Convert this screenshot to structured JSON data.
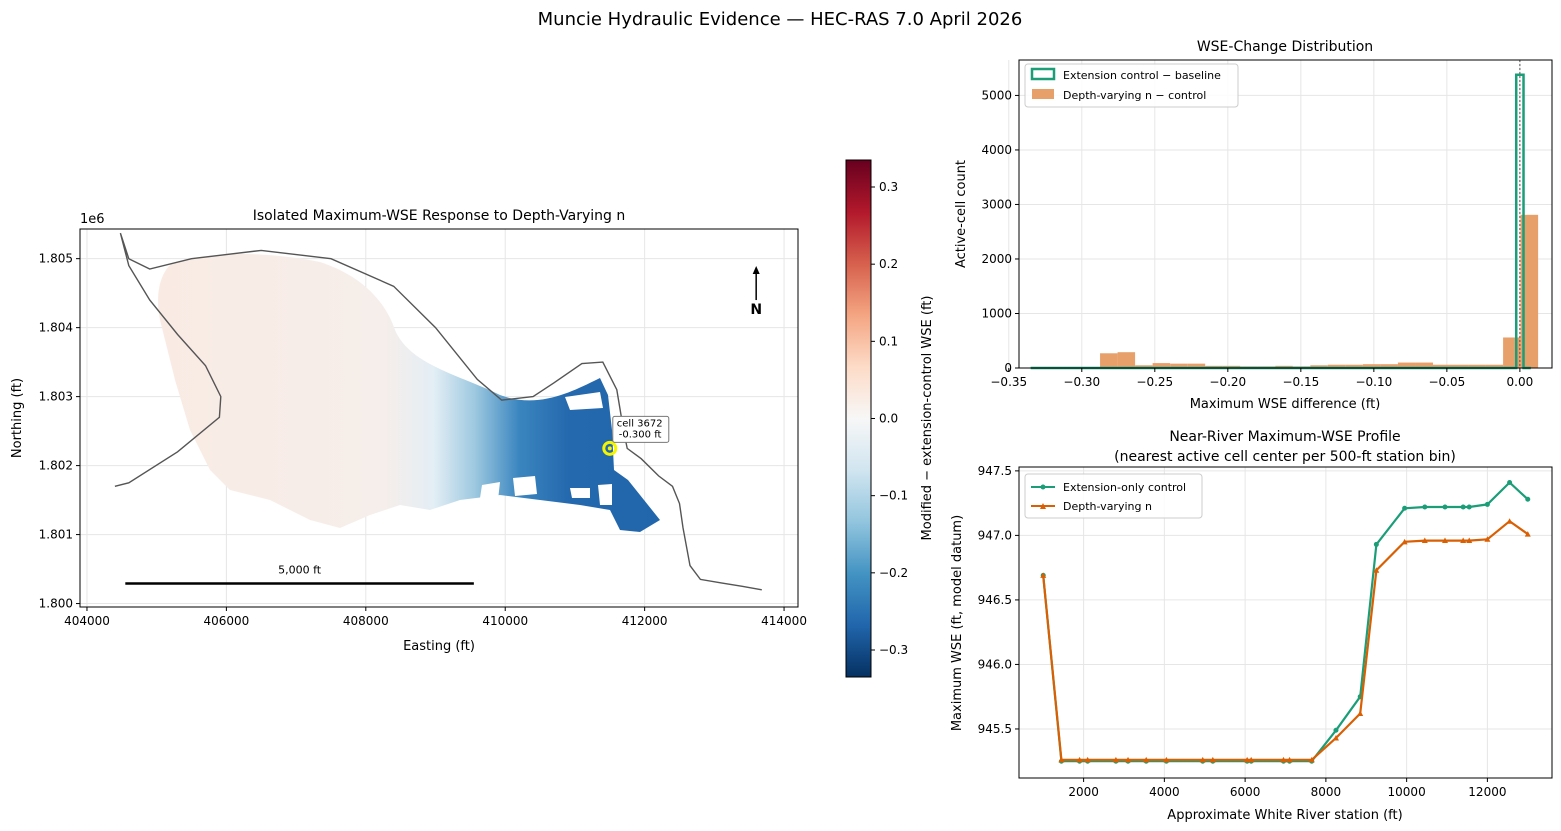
{
  "figure": {
    "suptitle": "Muncie Hydraulic Evidence — HEC-RAS 7.0 April 2026"
  },
  "colors": {
    "green": "#1b9e77",
    "orange": "#d95f02",
    "orange_fill": "#e8a06b",
    "highlight": "#f5f500",
    "neg_strong": "#2166ac",
    "pos_light": "#f9ebe4",
    "neutral": "#f2f2f2"
  },
  "chart_data": [
    {
      "id": "map",
      "type": "heatmap",
      "title": "Isolated Maximum-WSE Response to Depth-Varying n",
      "xlabel": "Easting (ft)",
      "ylabel": "Northing (ft)",
      "y_offset_label": "1e6",
      "xlim": [
        403900,
        414200
      ],
      "ylim": [
        1.79995,
        1.80543
      ],
      "xticks": [
        404000,
        406000,
        408000,
        410000,
        412000,
        414000
      ],
      "yticks": [
        1.8,
        1.801,
        1.802,
        1.803,
        1.804,
        1.805
      ],
      "grid": true,
      "colorbar": {
        "label": "Modified − extension-control WSE (ft)",
        "vmin": -0.335,
        "vmax": 0.335,
        "ticks": [
          -0.3,
          -0.2,
          -0.1,
          0.0,
          0.1,
          0.2,
          0.3
        ],
        "colormap": "RdBu_r"
      },
      "annotation": {
        "line1": "cell 3672",
        "line2": "-0.300 ft",
        "x": 411500,
        "y": 1.80225
      },
      "scale_bar": {
        "label": "5,000 ft",
        "x_start": 404550,
        "x_end": 409550,
        "y": 1.80029
      },
      "north_arrow": {
        "label": "N",
        "x": 413600,
        "y": 1.8044
      },
      "river_centerline": [
        [
          404400,
          1.8017
        ],
        [
          404600,
          1.80175
        ],
        [
          405300,
          1.8022
        ],
        [
          405900,
          1.8027
        ],
        [
          405920,
          1.803
        ],
        [
          405700,
          1.80345
        ],
        [
          405300,
          1.8039
        ],
        [
          404900,
          1.8044
        ],
        [
          404600,
          1.8049
        ],
        [
          404480,
          1.80537
        ],
        [
          404600,
          1.805
        ],
        [
          404900,
          1.80485
        ],
        [
          405500,
          1.805
        ],
        [
          406500,
          1.80512
        ],
        [
          407500,
          1.805
        ],
        [
          408400,
          1.8046
        ],
        [
          409000,
          1.804
        ],
        [
          409600,
          1.80325
        ],
        [
          409950,
          1.80295
        ],
        [
          410400,
          1.803
        ],
        [
          410700,
          1.8032
        ],
        [
          411100,
          1.80348
        ],
        [
          411400,
          1.8035
        ],
        [
          411600,
          1.8031
        ],
        [
          411700,
          1.8025
        ],
        [
          411750,
          1.80225
        ],
        [
          411950,
          1.8021
        ],
        [
          412200,
          1.80185
        ],
        [
          412400,
          1.8017
        ],
        [
          412500,
          1.80145
        ],
        [
          412550,
          1.8011
        ],
        [
          412650,
          1.80055
        ],
        [
          412800,
          1.80035
        ],
        [
          413100,
          1.8003
        ],
        [
          413400,
          1.80025
        ],
        [
          413680,
          1.8002
        ]
      ]
    },
    {
      "id": "hist",
      "type": "bar",
      "title": "WSE-Change Distribution",
      "xlabel": "Maximum WSE difference (ft)",
      "ylabel": "Active-cell count",
      "xlim": [
        -0.343,
        0.022
      ],
      "ylim": [
        0,
        5650
      ],
      "xticks": [
        -0.35,
        -0.3,
        -0.25,
        -0.2,
        -0.15,
        -0.1,
        -0.05,
        0.0
      ],
      "yticks": [
        0,
        1000,
        2000,
        3000,
        4000,
        5000
      ],
      "grid": true,
      "legend_position": "upper left",
      "vline": 0,
      "series": [
        {
          "name": "Extension control − baseline",
          "style": "step",
          "bin_edges": [
            -0.335,
            -0.3,
            -0.25,
            -0.2,
            -0.15,
            -0.1,
            -0.05,
            -0.0025,
            0.0025,
            0.0075
          ],
          "counts": [
            0,
            0,
            0,
            0,
            0,
            0,
            0,
            5380,
            0
          ]
        },
        {
          "name": "Depth-varying n − control",
          "style": "filled",
          "bin_edges": [
            -0.3355,
            -0.3235,
            -0.3115,
            -0.2995,
            -0.2875,
            -0.2755,
            -0.2635,
            -0.2515,
            -0.2395,
            -0.2275,
            -0.2155,
            -0.2035,
            -0.1915,
            -0.1795,
            -0.1675,
            -0.1555,
            -0.1435,
            -0.1315,
            -0.1195,
            -0.1075,
            -0.0955,
            -0.0835,
            -0.0715,
            -0.0595,
            -0.0475,
            -0.0355,
            -0.0235,
            -0.0115,
            0.0005,
            0.0125
          ],
          "counts": [
            10,
            10,
            10,
            10,
            270,
            290,
            50,
            90,
            80,
            80,
            40,
            40,
            30,
            30,
            40,
            30,
            50,
            60,
            60,
            70,
            70,
            100,
            100,
            60,
            60,
            60,
            60,
            560,
            2810
          ]
        }
      ]
    },
    {
      "id": "profile",
      "type": "line",
      "title": "Near-River Maximum-WSE Profile",
      "subtitle": "(nearest active cell center per 500-ft station bin)",
      "xlabel": "Approximate White River station (ft)",
      "ylabel": "Maximum WSE (ft, model datum)",
      "xlim": [
        400,
        13600
      ],
      "ylim": [
        945.12,
        947.53
      ],
      "xticks": [
        2000,
        4000,
        6000,
        8000,
        10000,
        12000
      ],
      "yticks": [
        945.5,
        946.0,
        946.5,
        947.0,
        947.5
      ],
      "grid": true,
      "legend_position": "upper left",
      "x": [
        1000,
        1450,
        1900,
        2100,
        2800,
        3100,
        3550,
        4050,
        4950,
        5200,
        6050,
        6150,
        6950,
        7100,
        7650,
        8250,
        8850,
        9250,
        9950,
        10450,
        10950,
        11400,
        11550,
        12000,
        12550,
        13000
      ],
      "series": [
        {
          "name": "Extension-only control",
          "color": "#1b9e77",
          "marker": "circle",
          "values": [
            946.69,
            945.25,
            945.25,
            945.25,
            945.25,
            945.25,
            945.25,
            945.25,
            945.25,
            945.25,
            945.25,
            945.25,
            945.25,
            945.25,
            945.25,
            945.49,
            945.75,
            946.93,
            947.21,
            947.22,
            947.22,
            947.22,
            947.22,
            947.24,
            947.41,
            947.28
          ]
        },
        {
          "name": "Depth-varying n",
          "color": "#d95f02",
          "marker": "triangle",
          "values": [
            946.69,
            945.26,
            945.26,
            945.26,
            945.26,
            945.26,
            945.26,
            945.26,
            945.26,
            945.26,
            945.26,
            945.26,
            945.26,
            945.26,
            945.26,
            945.43,
            945.62,
            946.73,
            946.95,
            946.96,
            946.96,
            946.96,
            946.96,
            946.97,
            947.11,
            947.01
          ]
        }
      ]
    }
  ]
}
